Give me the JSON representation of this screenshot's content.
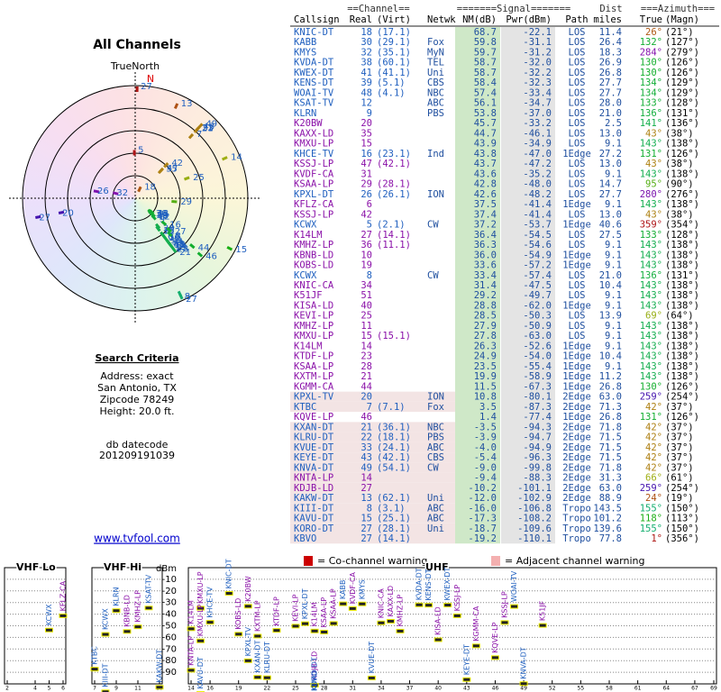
{
  "left": {
    "title": "All Channels",
    "true_north": "TrueNorth",
    "north": "N",
    "criteria_title": "Search Criteria",
    "criteria": [
      "Address: exact",
      "San Antonio, TX",
      "Zipcode 78249",
      "Height: 20.0 ft."
    ],
    "datecode_label": "db datecode",
    "datecode": "201209191039",
    "link": "www.tvfool.com"
  },
  "table": {
    "group_headers": [
      "==Channel==",
      "=======Signal=======",
      "Dist",
      "===Azimuth==="
    ],
    "headers": [
      "Callsign",
      "Real",
      "(Virt)",
      "Netwk",
      "NM(dB)",
      "Pwr(dBm)",
      "Path",
      "miles",
      "True",
      "(Magn)"
    ],
    "rows": [
      [
        "KNIC-DT",
        "18",
        "(17.1)",
        null,
        "68.7",
        "-22.1",
        "LOS",
        "11.4",
        "26°",
        "(21°)"
      ],
      [
        "KABB",
        "30",
        "(29.1)",
        "Fox",
        "59.8",
        "-31.1",
        "LOS",
        "26.4",
        "132°",
        "(127°)"
      ],
      [
        "KMYS",
        "32",
        "(35.1)",
        "MyN",
        "59.7",
        "-31.2",
        "LOS",
        "18.3",
        "284°",
        "(279°)"
      ],
      [
        "KVDA-DT",
        "38",
        "(60.1)",
        "TEL",
        "58.7",
        "-32.0",
        "LOS",
        "26.9",
        "130°",
        "(126°)"
      ],
      [
        "KWEX-DT",
        "41",
        "(41.1)",
        "Uni",
        "58.7",
        "-32.2",
        "LOS",
        "26.8",
        "130°",
        "(126°)"
      ],
      [
        "KENS-DT",
        "39",
        "(5.1)",
        "CBS",
        "58.4",
        "-32.3",
        "LOS",
        "27.7",
        "134°",
        "(129°)"
      ],
      [
        "WOAI-TV",
        "48",
        "(4.1)",
        "NBC",
        "57.4",
        "-33.4",
        "LOS",
        "27.7",
        "134°",
        "(129°)"
      ],
      [
        "KSAT-TV",
        "12",
        null,
        "ABC",
        "56.1",
        "-34.7",
        "LOS",
        "28.0",
        "133°",
        "(128°)"
      ],
      [
        "KLRN",
        "9",
        null,
        "PBS",
        "53.8",
        "-37.0",
        "LOS",
        "21.0",
        "136°",
        "(131°)"
      ],
      [
        "K20BW",
        "20",
        null,
        null,
        "45.7",
        "-33.2",
        "LOS",
        "2.5",
        "141°",
        "(136°)"
      ],
      [
        "KAXX-LD",
        "35",
        null,
        null,
        "44.7",
        "-46.1",
        "LOS",
        "13.0",
        "43°",
        "(38°)"
      ],
      [
        "KMXU-LP",
        "15",
        null,
        null,
        "43.9",
        "-34.9",
        "LOS",
        "9.1",
        "143°",
        "(138°)"
      ],
      [
        "KHCE-TV",
        "16",
        "(23.1)",
        "Ind",
        "43.8",
        "-47.0",
        "1Edge",
        "27.2",
        "131°",
        "(126°)"
      ],
      [
        "KSSJ-LP",
        "47",
        "(42.1)",
        null,
        "43.7",
        "-47.2",
        "LOS",
        "13.0",
        "43°",
        "(38°)"
      ],
      [
        "KVDF-CA",
        "31",
        null,
        null,
        "43.6",
        "-35.2",
        "LOS",
        "9.1",
        "143°",
        "(138°)"
      ],
      [
        "KSAA-LP",
        "29",
        "(28.1)",
        null,
        "42.8",
        "-48.0",
        "LOS",
        "14.7",
        "95°",
        "(90°)"
      ],
      [
        "KPXL-DT",
        "26",
        "(26.1)",
        "ION",
        "42.6",
        "-48.2",
        "LOS",
        "27.7",
        "280°",
        "(276°)"
      ],
      [
        "KFLZ-CA",
        "6",
        null,
        null,
        "37.5",
        "-41.4",
        "1Edge",
        "9.1",
        "143°",
        "(138°)"
      ],
      [
        "KSSJ-LP",
        "42",
        null,
        null,
        "37.4",
        "-41.4",
        "LOS",
        "13.0",
        "43°",
        "(38°)"
      ],
      [
        "KCWX",
        "5",
        "(2.1)",
        "CW",
        "37.2",
        "-53.7",
        "1Edge",
        "40.6",
        "359°",
        "(354°)"
      ],
      [
        "K14LM",
        "27",
        "(14.1)",
        null,
        "36.4",
        "-54.5",
        "LOS",
        "27.5",
        "133°",
        "(128°)"
      ],
      [
        "KMHZ-LP",
        "36",
        "(11.1)",
        null,
        "36.3",
        "-54.6",
        "LOS",
        "9.1",
        "143°",
        "(138°)"
      ],
      [
        "KBNB-LD",
        "10",
        null,
        null,
        "36.0",
        "-54.9",
        "1Edge",
        "9.1",
        "143°",
        "(138°)"
      ],
      [
        "KOBS-LD",
        "19",
        null,
        null,
        "33.6",
        "-57.2",
        "1Edge",
        "9.1",
        "143°",
        "(138°)"
      ],
      [
        "KCWX",
        "8",
        null,
        "CW",
        "33.4",
        "-57.4",
        "LOS",
        "21.0",
        "136°",
        "(131°)"
      ],
      [
        "KNIC-CA",
        "34",
        null,
        null,
        "31.4",
        "-47.5",
        "LOS",
        "10.4",
        "143°",
        "(138°)"
      ],
      [
        "K51JF",
        "51",
        null,
        null,
        "29.2",
        "-49.7",
        "LOS",
        "9.1",
        "143°",
        "(138°)"
      ],
      [
        "KISA-LD",
        "40",
        null,
        null,
        "28.8",
        "-62.0",
        "1Edge",
        "9.1",
        "143°",
        "(138°)"
      ],
      [
        "KEVI-LP",
        "25",
        null,
        null,
        "28.5",
        "-50.3",
        "LOS",
        "13.9",
        "69°",
        "(64°)"
      ],
      [
        "KMHZ-LP",
        "11",
        null,
        null,
        "27.9",
        "-50.9",
        "LOS",
        "9.1",
        "143°",
        "(138°)"
      ],
      [
        "KMXU-LP",
        "15",
        "(15.1)",
        null,
        "27.8",
        "-63.0",
        "LOS",
        "9.1",
        "143°",
        "(138°)"
      ],
      [
        "K14LM",
        "14",
        null,
        null,
        "26.3",
        "-52.6",
        "1Edge",
        "9.1",
        "143°",
        "(138°)"
      ],
      [
        "KTDF-LP",
        "23",
        null,
        null,
        "24.9",
        "-54.0",
        "1Edge",
        "10.4",
        "143°",
        "(138°)"
      ],
      [
        "KSAA-LP",
        "28",
        null,
        null,
        "23.5",
        "-55.4",
        "1Edge",
        "9.1",
        "143°",
        "(138°)"
      ],
      [
        "KXTM-LP",
        "21",
        null,
        null,
        "19.9",
        "-58.9",
        "1Edge",
        "11.2",
        "143°",
        "(138°)"
      ],
      [
        "KGMM-CA",
        "44",
        null,
        null,
        "11.5",
        "-67.3",
        "1Edge",
        "26.8",
        "130°",
        "(126°)"
      ],
      [
        "KPXL-TV",
        "20",
        null,
        "ION",
        "10.8",
        "-80.1",
        "2Edge",
        "63.0",
        "259°",
        "(254°)"
      ],
      [
        "KTBC",
        "7",
        "(7.1)",
        "Fox",
        "3.5",
        "-87.3",
        "2Edge",
        "71.3",
        "42°",
        "(37°)"
      ],
      [
        "KQVE-LP",
        "46",
        null,
        null,
        "1.4",
        "-77.4",
        "1Edge",
        "26.8",
        "131°",
        "(126°)"
      ],
      [
        "KXAN-DT",
        "21",
        "(36.1)",
        "NBC",
        "-3.5",
        "-94.3",
        "2Edge",
        "71.8",
        "42°",
        "(37°)"
      ],
      [
        "KLRU-DT",
        "22",
        "(18.1)",
        "PBS",
        "-3.9",
        "-94.7",
        "2Edge",
        "71.5",
        "42°",
        "(37°)"
      ],
      [
        "KVUE-DT",
        "33",
        "(24.1)",
        "ABC",
        "-4.0",
        "-94.9",
        "2Edge",
        "71.5",
        "42°",
        "(37°)"
      ],
      [
        "KEYE-DT",
        "43",
        "(42.1)",
        "CBS",
        "-5.4",
        "-96.3",
        "2Edge",
        "71.5",
        "42°",
        "(37°)"
      ],
      [
        "KNVA-DT",
        "49",
        "(54.1)",
        "CW",
        "-9.0",
        "-99.8",
        "2Edge",
        "71.8",
        "42°",
        "(37°)"
      ],
      [
        "KNTA-LP",
        "14",
        null,
        null,
        "-9.4",
        "-88.3",
        "2Edge",
        "31.3",
        "66°",
        "(61°)"
      ],
      [
        "KDJB-LD",
        "27",
        null,
        null,
        "-10.2",
        "-101.1",
        "2Edge",
        "63.0",
        "259°",
        "(254°)"
      ],
      [
        "KAKW-DT",
        "13",
        "(62.1)",
        "Uni",
        "-12.0",
        "-102.9",
        "2Edge",
        "88.9",
        "24°",
        "(19°)"
      ],
      [
        "KIII-DT",
        "8",
        "(3.1)",
        "ABC",
        "-16.0",
        "-106.8",
        "Tropo",
        "143.5",
        "155°",
        "(150°)"
      ],
      [
        "KAVU-DT",
        "15",
        "(25.1)",
        "ABC",
        "-17.3",
        "-108.2",
        "Tropo",
        "101.2",
        "118°",
        "(113°)"
      ],
      [
        "KORO-DT",
        "27",
        "(28.1)",
        "Uni",
        "-18.7",
        "-109.6",
        "Tropo",
        "139.6",
        "155°",
        "(150°)"
      ],
      [
        "KBVO",
        "27",
        "(14.1)",
        null,
        "-19.2",
        "-110.1",
        "Tropo",
        "77.8",
        "1°",
        "(356°)"
      ]
    ]
  },
  "legend": {
    "co": "= Co-channel warning",
    "adj": "= Adjacent channel warning"
  },
  "spectrum": {
    "bands": [
      "VHF Lo",
      "VHF Hi",
      "UHF"
    ],
    "band_xlim": [
      [
        2,
        6
      ],
      [
        7,
        13
      ],
      [
        14,
        69
      ]
    ],
    "y_label": "dBm",
    "ylim": [
      -100,
      0
    ],
    "yticks": [
      -10,
      -20,
      -30,
      -40,
      -50,
      -60,
      -70,
      -80,
      -90
    ],
    "xticks": [
      2,
      4,
      5,
      6,
      7,
      9,
      11,
      13,
      14,
      16,
      19,
      22,
      25,
      28,
      31,
      34,
      37,
      40,
      43,
      46,
      49,
      52,
      55,
      58,
      61,
      64,
      67,
      69
    ]
  }
}
